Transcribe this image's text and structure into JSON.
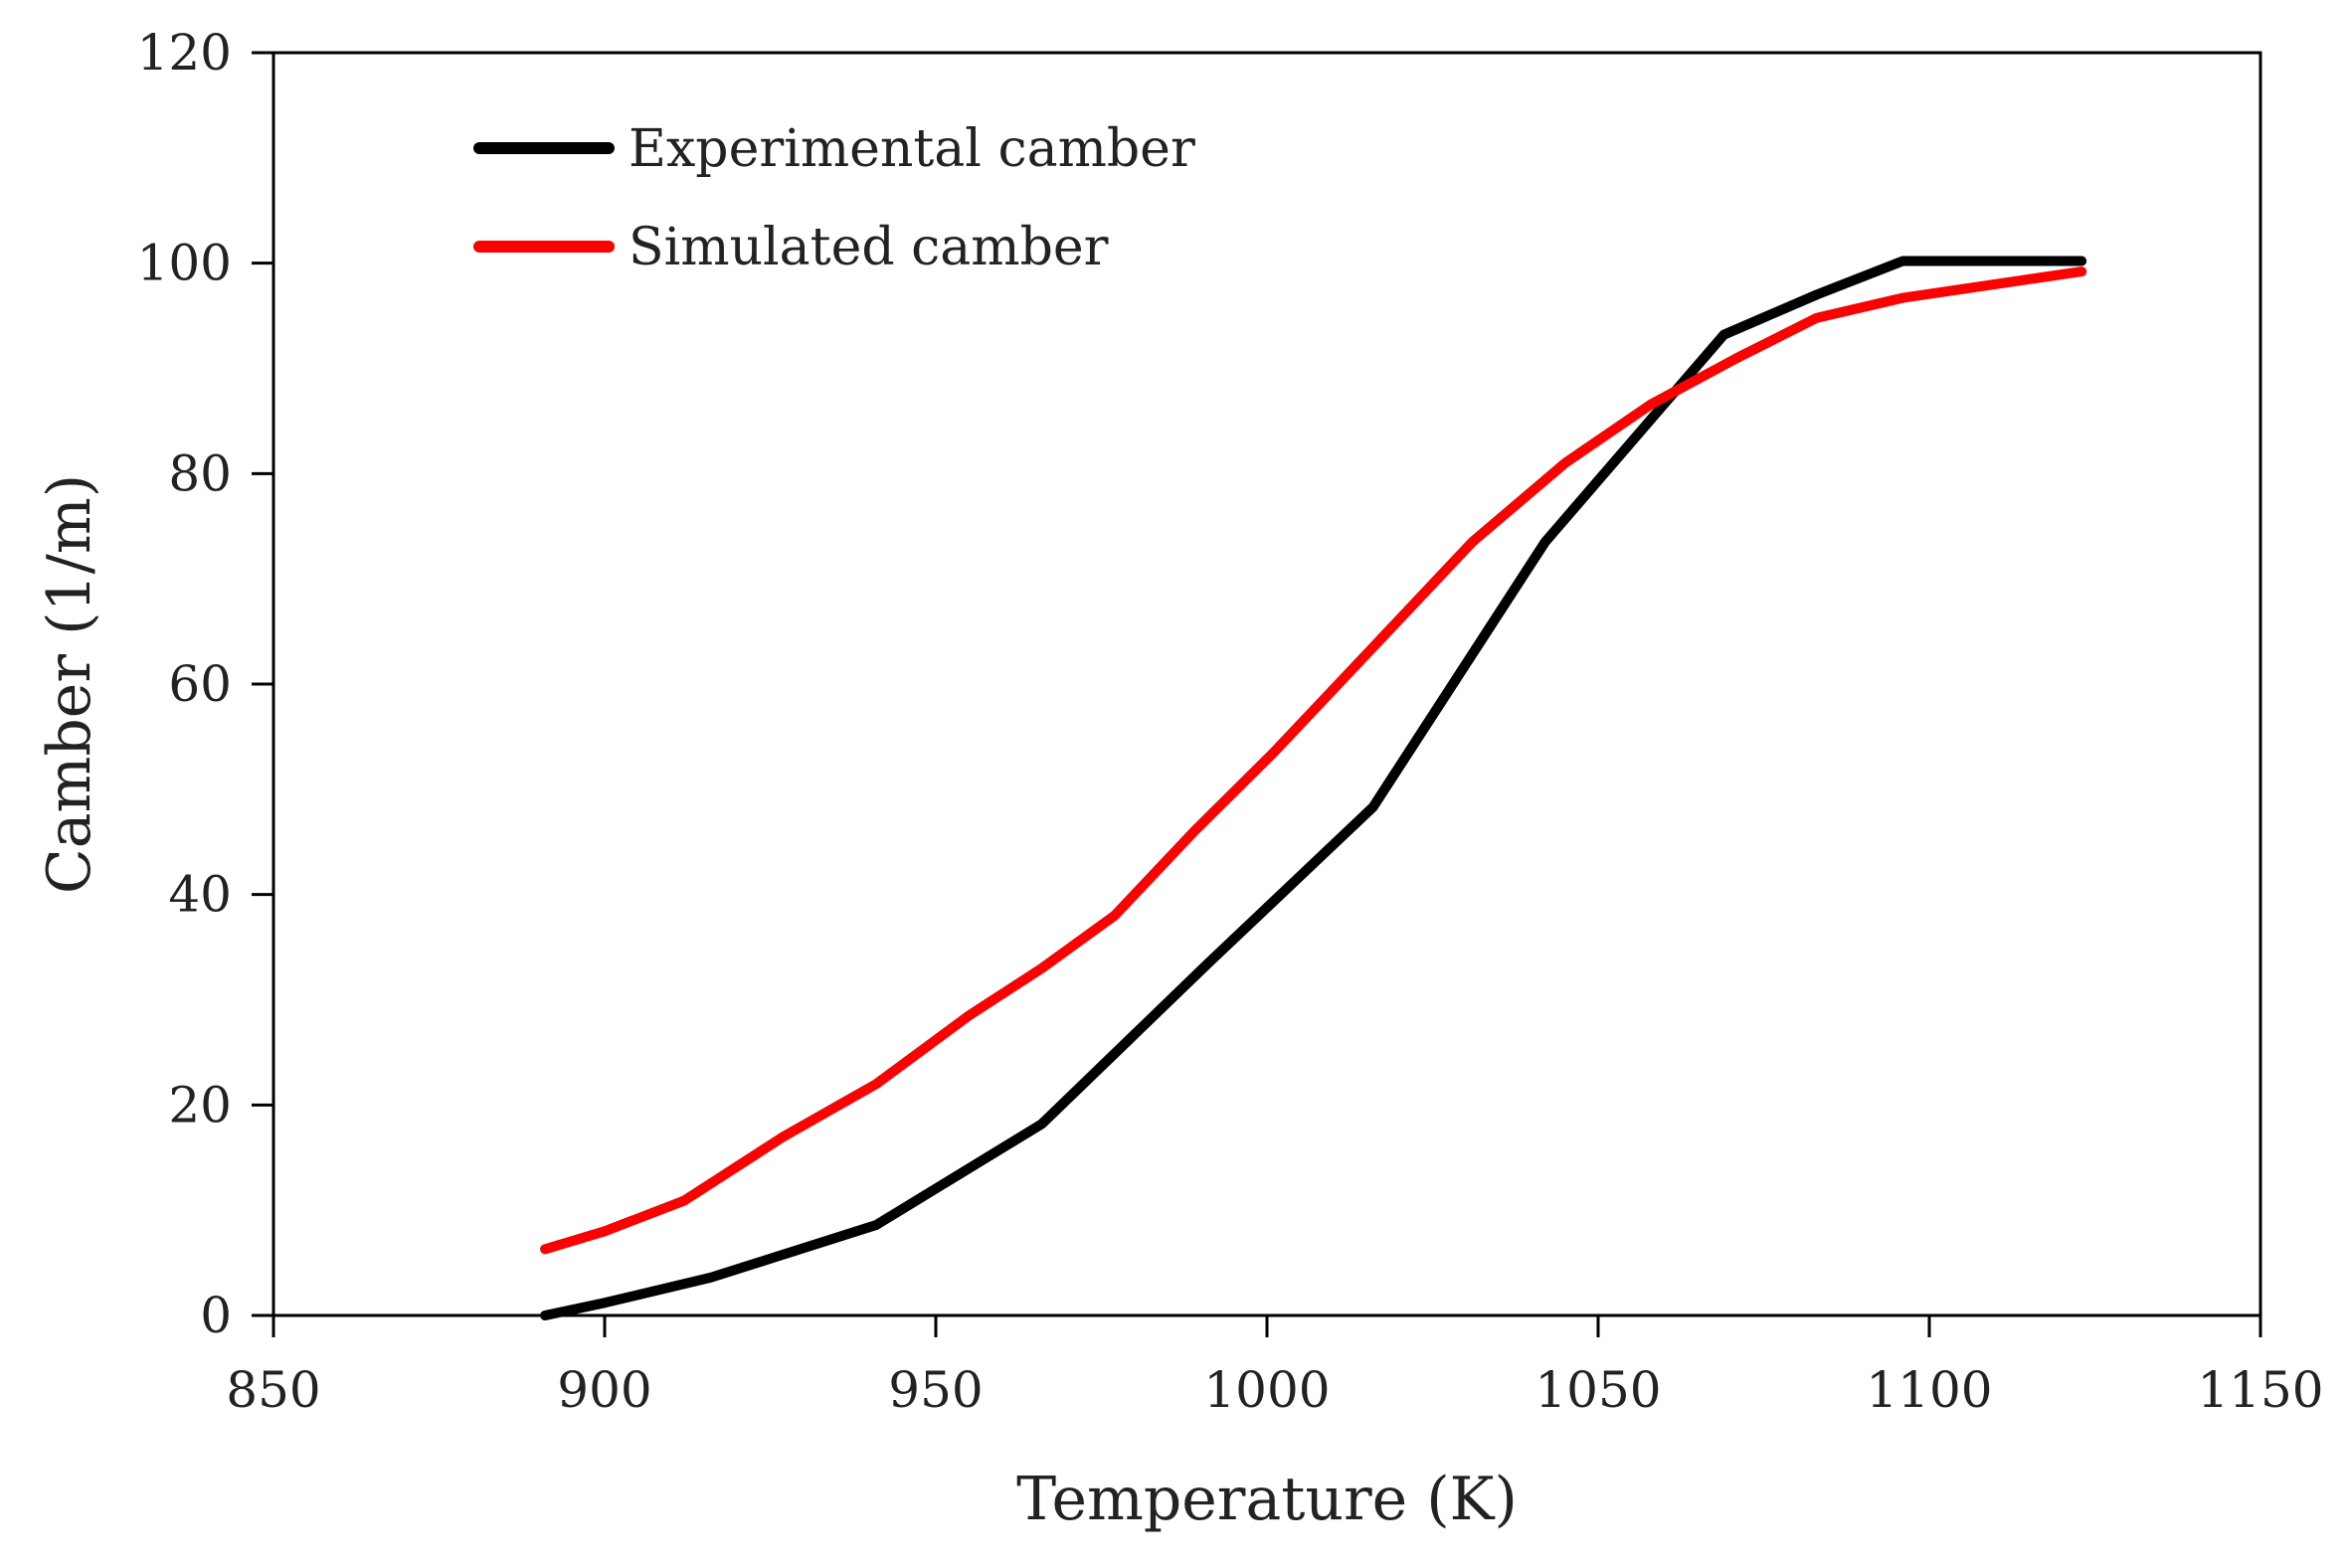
{
  "chart_data": {
    "type": "line",
    "title": "",
    "xlabel": "Temperature (K)",
    "ylabel": "Camber (1/m)",
    "xlim": [
      850,
      1150
    ],
    "ylim": [
      0,
      120
    ],
    "xticks": [
      850,
      900,
      950,
      1000,
      1050,
      1100,
      1150
    ],
    "yticks": [
      0,
      20,
      40,
      60,
      80,
      100,
      120
    ],
    "grid": false,
    "legend_position": "top-left",
    "series": [
      {
        "name": "Experimental camber",
        "color": "#000000",
        "x": [
          891,
          900,
          916,
          941,
          966,
          991,
          1016,
          1042,
          1069,
          1083,
          1096,
          1110,
          1123
        ],
        "y": [
          0,
          1.2,
          3.6,
          8.6,
          18.2,
          33.4,
          48.3,
          73.5,
          93.2,
          97.0,
          100.2,
          100.2,
          100.2
        ]
      },
      {
        "name": "Simulated camber",
        "color": "#ff0000",
        "x": [
          891,
          900,
          912,
          927,
          941,
          955,
          966,
          977,
          989,
          1001,
          1016,
          1031,
          1045,
          1058,
          1071,
          1083,
          1096,
          1110,
          1123
        ],
        "y": [
          6.3,
          8.0,
          10.9,
          17.0,
          22.0,
          28.5,
          33.0,
          38.0,
          46.0,
          53.5,
          63.5,
          73.5,
          81.0,
          86.6,
          91.0,
          94.8,
          96.7,
          98.0,
          99.2
        ]
      }
    ]
  }
}
